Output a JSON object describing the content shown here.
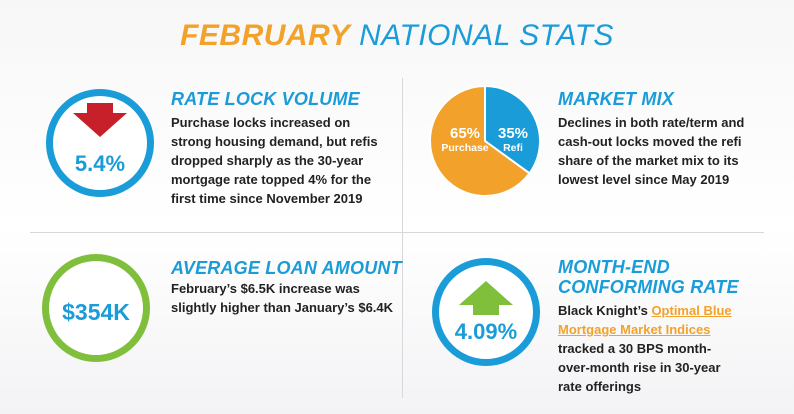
{
  "title": {
    "accent": "FEBRUARY",
    "main": "NATIONAL STATS"
  },
  "rate_lock": {
    "value": "5.4%",
    "heading": "RATE LOCK VOLUME",
    "lines": [
      "Purchase locks increased on",
      "strong housing demand, but refis",
      "dropped sharply as the 30-year",
      "mortgage rate topped 4% for the",
      "first time since November 2019"
    ],
    "arrow": "down-arrow-icon",
    "arrow_color": "#c8202a"
  },
  "market_mix": {
    "heading": "MARKET MIX",
    "lines": [
      "Declines in both rate/term and",
      "cash-out locks moved the refi",
      "share of the market mix to its",
      "lowest level since May 2019"
    ],
    "chart_data": {
      "type": "pie",
      "slices": [
        {
          "label": "Purchase",
          "pct": "65%",
          "value": 65,
          "color": "#f2a22a"
        },
        {
          "label": "Refi",
          "pct": "35%",
          "value": 35,
          "color": "#1a9cd8"
        }
      ]
    }
  },
  "loan_amount": {
    "value": "$354K",
    "heading": "AVERAGE LOAN AMOUNT",
    "lines": [
      "February’s $6.5K increase was",
      "slightly higher than January’s $6.4K"
    ]
  },
  "conforming_rate": {
    "value": "4.09%",
    "heading_lines": [
      "MONTH-END",
      "CONFORMING RATE"
    ],
    "body_prefix": "Black Knight’s ",
    "link_line1": "Optimal Blue",
    "link_line2": "Mortgage Market Indices",
    "lines": [
      "tracked a 30 BPS month-",
      "over-month rise in 30-year",
      "rate offerings"
    ],
    "arrow": "up-arrow-icon",
    "arrow_color": "#7fbf3b"
  }
}
